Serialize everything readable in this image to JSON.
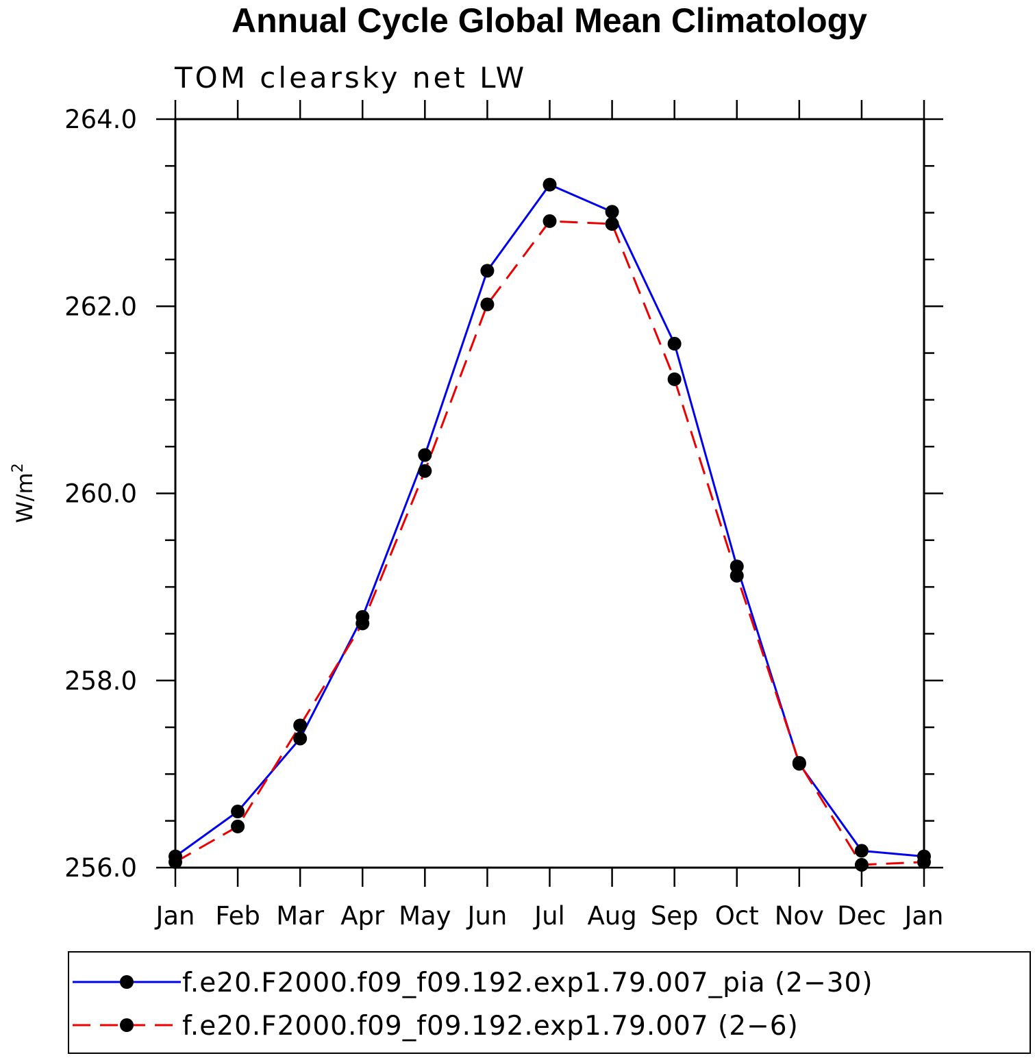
{
  "chart_data": {
    "type": "line",
    "title": "Annual Cycle Global Mean Climatology",
    "subtitle": "TOM clearsky net LW",
    "ylabel": "W/m",
    "ylabel_sup": "2",
    "xlabel": "",
    "ylim": [
      256.0,
      264.0
    ],
    "yticks": [
      256.0,
      258.0,
      260.0,
      262.0,
      264.0
    ],
    "ytick_labels": [
      "256.0",
      "258.0",
      "260.0",
      "262.0",
      "264.0"
    ],
    "categories": [
      "Jan",
      "Feb",
      "Mar",
      "Apr",
      "May",
      "Jun",
      "Jul",
      "Aug",
      "Sep",
      "Oct",
      "Nov",
      "Dec",
      "Jan"
    ],
    "series": [
      {
        "name": "f.e20.F2000.f09_f09.192.exp1.79.007_pia (2−30)",
        "color": "#0000ee",
        "dash": "solid",
        "values": [
          256.12,
          256.6,
          257.38,
          258.68,
          260.41,
          262.38,
          263.3,
          263.01,
          261.6,
          259.22,
          257.11,
          256.18,
          256.12
        ]
      },
      {
        "name": "f.e20.F2000.f09_f09.192.exp1.79.007 (2−6)",
        "color": "#ee0000",
        "dash": "dashed",
        "values": [
          256.06,
          256.44,
          257.52,
          258.61,
          260.24,
          262.02,
          262.91,
          262.88,
          261.22,
          259.12,
          257.12,
          256.03,
          256.06
        ]
      }
    ],
    "legend_placement": "bottom"
  }
}
